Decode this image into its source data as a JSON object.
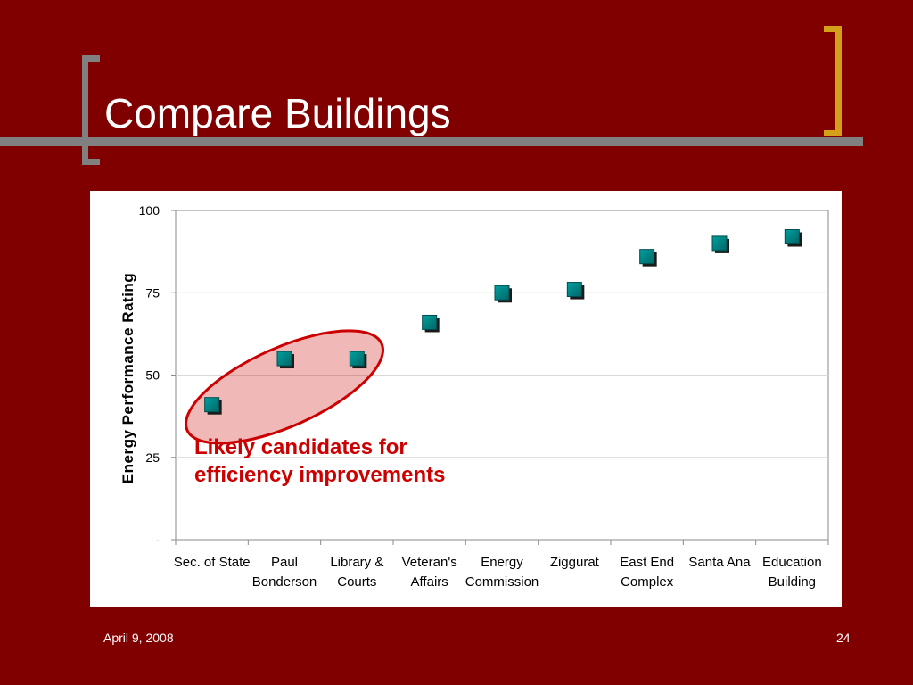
{
  "slide": {
    "title": "Compare Buildings",
    "footer_date": "April 9, 2008",
    "page_number": "24",
    "colors": {
      "background": "#800000",
      "accent_bracket": "#D4A017",
      "gray_bar": "#808080",
      "marker": "#008080",
      "highlight": "#cc0000"
    }
  },
  "chart_data": {
    "type": "scatter",
    "title": "",
    "xlabel": "",
    "ylabel": "Energy Performance Rating",
    "ylim": [
      0,
      100
    ],
    "y_ticks": [
      "-",
      "25",
      "50",
      "75",
      "100"
    ],
    "grid": true,
    "categories": [
      [
        "Sec. of State"
      ],
      [
        "Paul",
        "Bonderson"
      ],
      [
        "Library &",
        "Courts"
      ],
      [
        "Veteran's",
        "Affairs"
      ],
      [
        "Energy",
        "Commission"
      ],
      [
        "Ziggurat"
      ],
      [
        "East End",
        "Complex"
      ],
      [
        "Santa Ana"
      ],
      [
        "Education",
        "Building"
      ]
    ],
    "values": [
      41,
      55,
      55,
      66,
      75,
      76,
      86,
      90,
      92
    ],
    "annotation": {
      "lines": [
        "Likely candidates for",
        "efficiency improvements"
      ],
      "highlighted_points": [
        0,
        1,
        2
      ]
    }
  }
}
